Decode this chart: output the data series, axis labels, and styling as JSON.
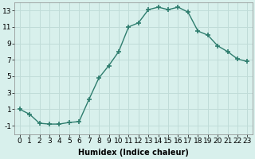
{
  "x": [
    0,
    1,
    2,
    3,
    4,
    5,
    6,
    7,
    8,
    9,
    10,
    11,
    12,
    13,
    14,
    15,
    16,
    17,
    18,
    19,
    20,
    21,
    22,
    23
  ],
  "y": [
    1.0,
    0.4,
    -0.7,
    -0.8,
    -0.8,
    -0.6,
    -0.5,
    2.2,
    4.8,
    6.3,
    8.0,
    11.0,
    11.5,
    13.1,
    13.4,
    13.1,
    13.4,
    12.8,
    10.5,
    10.0,
    8.7,
    8.0,
    7.1,
    6.8
  ],
  "line_color": "#2e7d6e",
  "marker": "+",
  "marker_size": 4,
  "marker_linewidth": 1.2,
  "background_color": "#d8f0ec",
  "grid_color": "#c0dcd8",
  "xlabel": "Humidex (Indice chaleur)",
  "xlim": [
    -0.5,
    23.5
  ],
  "ylim": [
    -2.0,
    14.0
  ],
  "yticks": [
    -1,
    1,
    3,
    5,
    7,
    9,
    11,
    13
  ],
  "xticks": [
    0,
    1,
    2,
    3,
    4,
    5,
    6,
    7,
    8,
    9,
    10,
    11,
    12,
    13,
    14,
    15,
    16,
    17,
    18,
    19,
    20,
    21,
    22,
    23
  ],
  "xlabel_fontsize": 7,
  "tick_fontsize": 6.5,
  "line_width": 1.0
}
